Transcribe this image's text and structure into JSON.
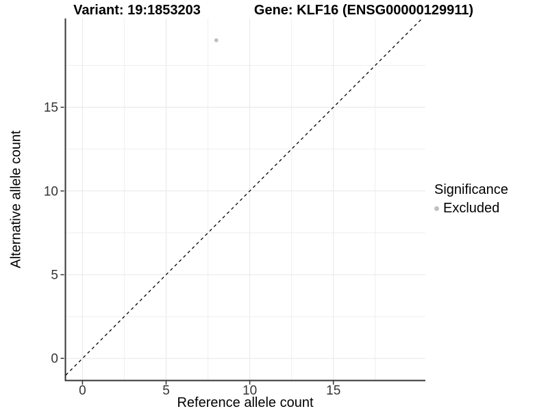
{
  "titles": {
    "variant": "Variant: 19:1853203",
    "gene": "Gene: KLF16 (ENSG00000129911)"
  },
  "axes": {
    "x_label": "Reference allele count",
    "y_label": "Alternative allele count"
  },
  "legend": {
    "title": "Significance",
    "items": [
      {
        "label": "Excluded",
        "color": "#c0c0c0"
      }
    ]
  },
  "colors": {
    "background": "#ffffff",
    "axis_line": "#333333",
    "tick_label": "#333333",
    "grid_major": "#e7e7e7",
    "grid_minor": "#efefef",
    "reference_line": "#000000",
    "excluded_point": "#c0c0c0"
  },
  "chart_data": {
    "type": "scatter",
    "title": "Variant: 19:1853203   Gene: KLF16 (ENSG00000129911)",
    "xlabel": "Reference allele count",
    "ylabel": "Alternative allele count",
    "xlim": [
      -1.0,
      20.5
    ],
    "ylim": [
      -1.3,
      20.3
    ],
    "x_major_ticks": [
      0,
      5,
      10,
      15
    ],
    "x_minor_ticks": [
      2.5,
      7.5,
      12.5,
      17.5
    ],
    "y_major_ticks": [
      0,
      5,
      10,
      15
    ],
    "y_minor_ticks": [
      2.5,
      7.5,
      12.5,
      17.5
    ],
    "grid": true,
    "legend_position": "right",
    "series": [
      {
        "name": "Excluded",
        "color": "#c0c0c0",
        "points": [
          {
            "x": 8,
            "y": 19
          }
        ]
      }
    ],
    "reference_line": {
      "type": "abline",
      "slope": 1,
      "intercept": 0,
      "style": "dashed",
      "color": "#000000"
    }
  }
}
